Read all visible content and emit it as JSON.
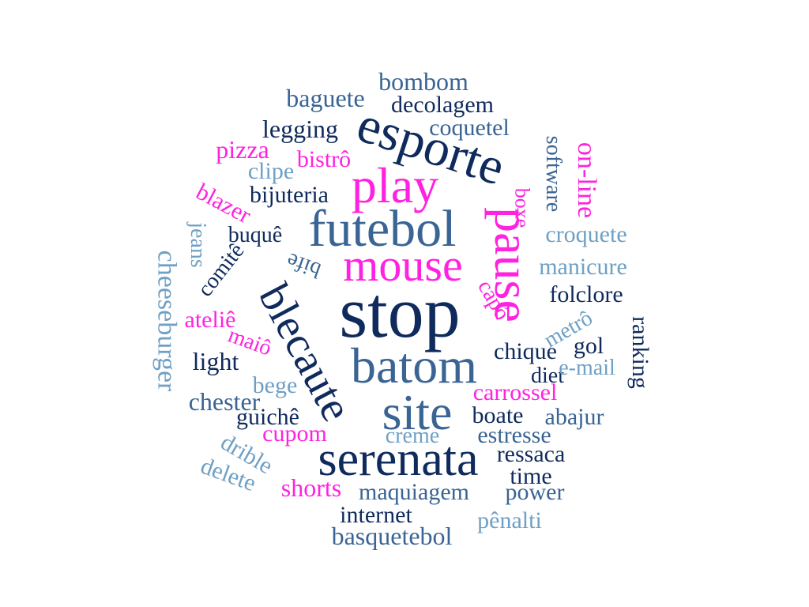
{
  "colors": {
    "navy": "#0f2a5c",
    "mid_blue": "#3a6494",
    "light_blue": "#6ea0c4",
    "magenta": "#ff22e0"
  },
  "words": [
    {
      "id": "bombom",
      "text": "bombom",
      "color": "mid_blue"
    },
    {
      "id": "baguete",
      "text": "baguete",
      "color": "mid_blue"
    },
    {
      "id": "decolagem",
      "text": "decolagem",
      "color": "navy"
    },
    {
      "id": "esporte",
      "text": "esporte",
      "color": "navy"
    },
    {
      "id": "legging",
      "text": "legging",
      "color": "navy"
    },
    {
      "id": "coquetel",
      "text": "coquetel",
      "color": "mid_blue"
    },
    {
      "id": "software",
      "text": "software",
      "color": "mid_blue"
    },
    {
      "id": "on-line",
      "text": "on-line",
      "color": "magenta"
    },
    {
      "id": "pizza",
      "text": "pizza",
      "color": "magenta"
    },
    {
      "id": "bistro",
      "text": "bistrô",
      "color": "magenta"
    },
    {
      "id": "play",
      "text": "play",
      "color": "magenta"
    },
    {
      "id": "clipe",
      "text": "clipe",
      "color": "light_blue"
    },
    {
      "id": "blazer",
      "text": "blazer",
      "color": "magenta"
    },
    {
      "id": "bijuteria",
      "text": "bijuteria",
      "color": "navy"
    },
    {
      "id": "boxe",
      "text": "boxe",
      "color": "magenta"
    },
    {
      "id": "futebol",
      "text": "futebol",
      "color": "mid_blue"
    },
    {
      "id": "pause",
      "text": "pause",
      "color": "magenta"
    },
    {
      "id": "jeans",
      "text": "jeans",
      "color": "light_blue"
    },
    {
      "id": "buque",
      "text": "buquê",
      "color": "navy"
    },
    {
      "id": "croquete",
      "text": "croquete",
      "color": "light_blue"
    },
    {
      "id": "mouse",
      "text": "mouse",
      "color": "magenta"
    },
    {
      "id": "cheeseburger",
      "text": "cheeseburger",
      "color": "light_blue"
    },
    {
      "id": "comite",
      "text": "comitê",
      "color": "navy"
    },
    {
      "id": "bife",
      "text": "bife",
      "color": "mid_blue"
    },
    {
      "id": "manicure",
      "text": "manicure",
      "color": "light_blue"
    },
    {
      "id": "blecaute",
      "text": "blecaute",
      "color": "navy"
    },
    {
      "id": "stop",
      "text": "stop",
      "color": "navy"
    },
    {
      "id": "capo",
      "text": "capô",
      "color": "magenta"
    },
    {
      "id": "folclore",
      "text": "folclore",
      "color": "navy"
    },
    {
      "id": "atelie",
      "text": "ateliê",
      "color": "magenta"
    },
    {
      "id": "ranking",
      "text": "ranking",
      "color": "navy"
    },
    {
      "id": "maio",
      "text": "maiô",
      "color": "magenta"
    },
    {
      "id": "metro",
      "text": "metrô",
      "color": "light_blue"
    },
    {
      "id": "light",
      "text": "light",
      "color": "navy"
    },
    {
      "id": "batom",
      "text": "batom",
      "color": "mid_blue"
    },
    {
      "id": "chique",
      "text": "chique",
      "color": "navy"
    },
    {
      "id": "gol",
      "text": "gol",
      "color": "navy"
    },
    {
      "id": "diet",
      "text": "diet",
      "color": "navy"
    },
    {
      "id": "e-mail",
      "text": "e-mail",
      "color": "light_blue"
    },
    {
      "id": "bege",
      "text": "bege",
      "color": "light_blue"
    },
    {
      "id": "chester",
      "text": "chester",
      "color": "mid_blue"
    },
    {
      "id": "carrossel",
      "text": "carrossel",
      "color": "magenta"
    },
    {
      "id": "site",
      "text": "site",
      "color": "mid_blue"
    },
    {
      "id": "guiche",
      "text": "guichê",
      "color": "navy"
    },
    {
      "id": "boate",
      "text": "boate",
      "color": "navy"
    },
    {
      "id": "abajur",
      "text": "abajur",
      "color": "mid_blue"
    },
    {
      "id": "cupom",
      "text": "cupom",
      "color": "magenta"
    },
    {
      "id": "creme",
      "text": "creme",
      "color": "light_blue"
    },
    {
      "id": "estresse",
      "text": "estresse",
      "color": "mid_blue"
    },
    {
      "id": "serenata",
      "text": "serenata",
      "color": "navy"
    },
    {
      "id": "drible",
      "text": "drible",
      "color": "light_blue"
    },
    {
      "id": "ressaca",
      "text": "ressaca",
      "color": "navy"
    },
    {
      "id": "delete",
      "text": "delete",
      "color": "light_blue"
    },
    {
      "id": "time",
      "text": "time",
      "color": "navy"
    },
    {
      "id": "shorts",
      "text": "shorts",
      "color": "magenta"
    },
    {
      "id": "maquiagem",
      "text": "maquiagem",
      "color": "mid_blue"
    },
    {
      "id": "power",
      "text": "power",
      "color": "mid_blue"
    },
    {
      "id": "internet",
      "text": "internet",
      "color": "navy"
    },
    {
      "id": "penalti",
      "text": "pênalti",
      "color": "light_blue"
    },
    {
      "id": "basquetebol",
      "text": "basquetebol",
      "color": "mid_blue"
    }
  ]
}
